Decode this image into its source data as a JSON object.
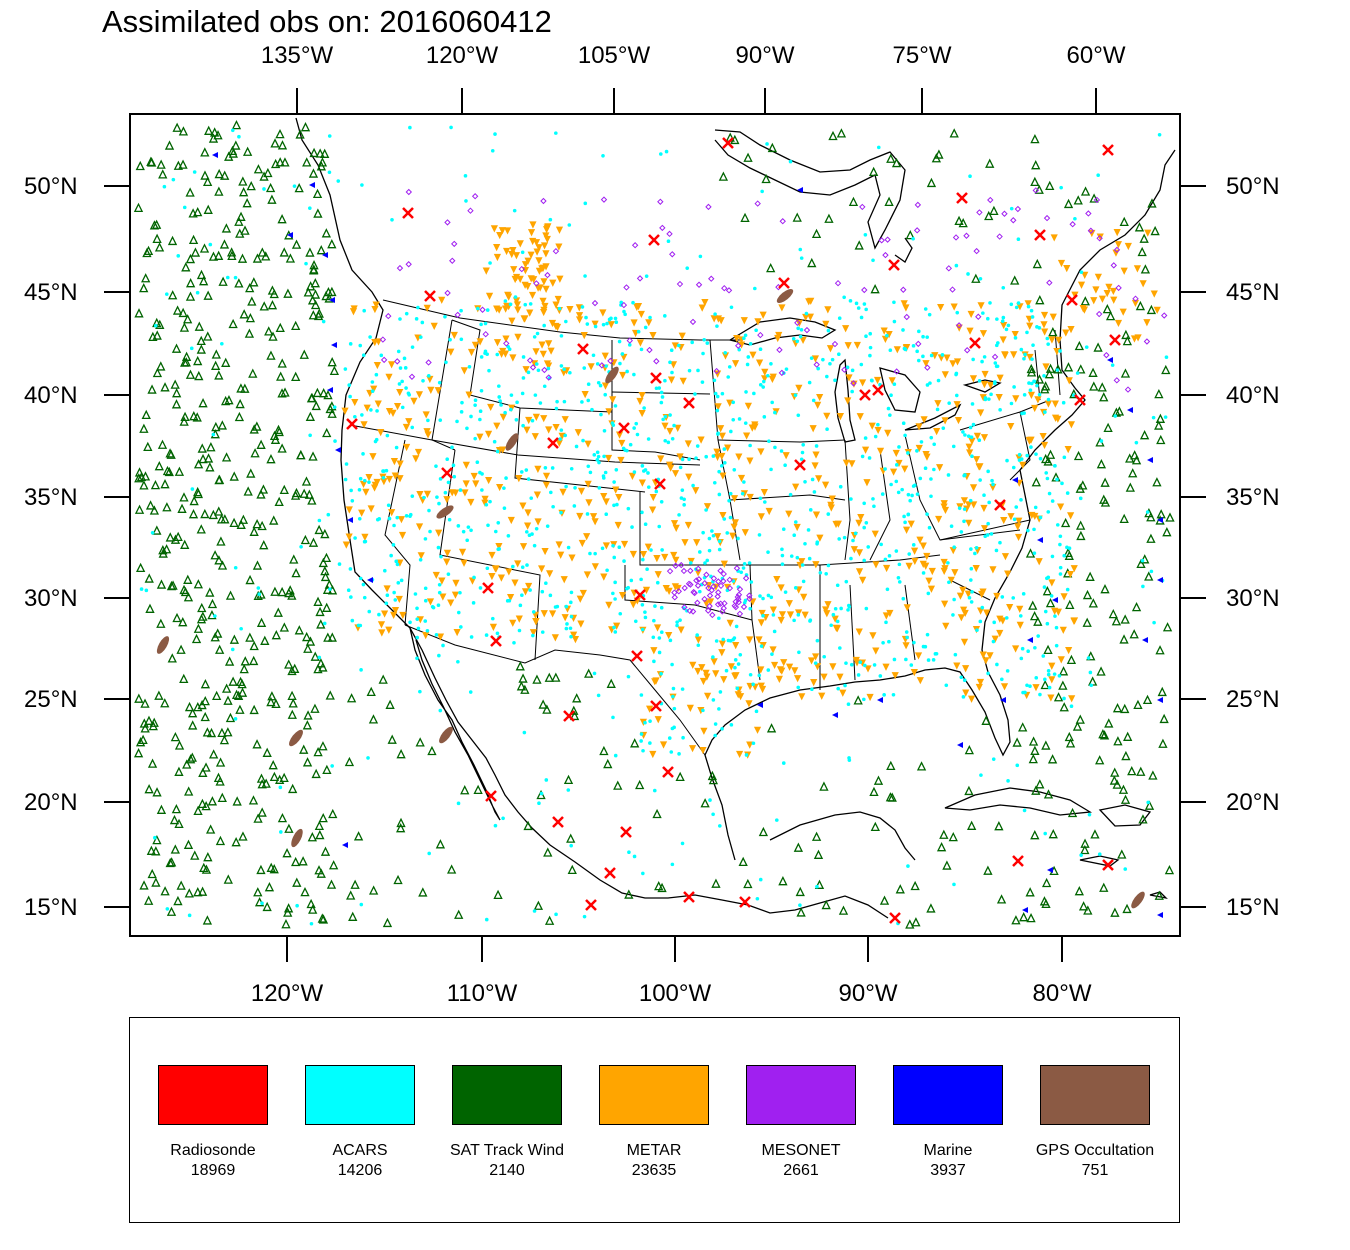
{
  "title": "Assimilated obs on: 2016060412",
  "top_axis_labels": [
    "135°W",
    "120°W",
    "105°W",
    "90°W",
    "75°W",
    "60°W"
  ],
  "bottom_axis_labels": [
    "120°W",
    "110°W",
    "100°W",
    "90°W",
    "80°W"
  ],
  "lat_labels": [
    "50°N",
    "45°N",
    "40°N",
    "35°N",
    "30°N",
    "25°N",
    "20°N",
    "15°N"
  ],
  "legend": [
    {
      "name": "Radiosonde",
      "count": "18969",
      "color": "#ff0000"
    },
    {
      "name": "ACARS",
      "count": "14206",
      "color": "#00ffff"
    },
    {
      "name": "SAT Track Wind",
      "count": "2140",
      "color": "#006400"
    },
    {
      "name": "METAR",
      "count": "23635",
      "color": "#ffa500"
    },
    {
      "name": "MESONET",
      "count": "2661",
      "color": "#a020f0"
    },
    {
      "name": "Marine",
      "count": "3937",
      "color": "#0000ff"
    },
    {
      "name": "GPS Occultation",
      "count": "751",
      "color": "#8b5a44"
    }
  ]
}
